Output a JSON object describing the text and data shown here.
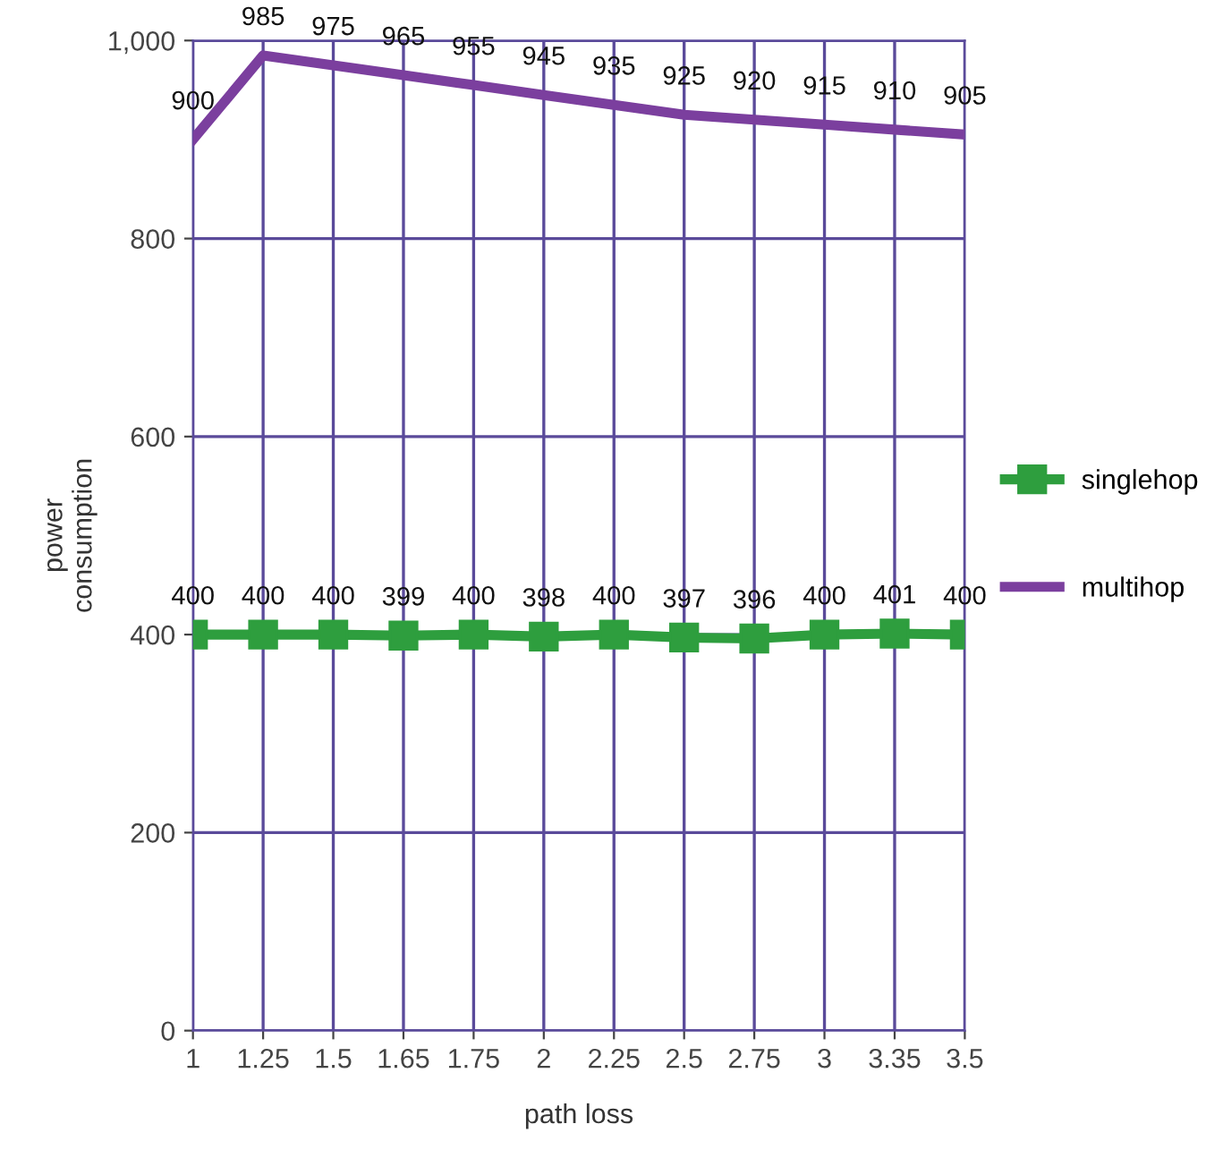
{
  "chart_data": {
    "type": "line",
    "xlabel": "path loss",
    "ylabel": "power\nconsumption",
    "categories": [
      "1",
      "1.25",
      "1.5",
      "1.65",
      "1.75",
      "2",
      "2.25",
      "2.5",
      "2.75",
      "3",
      "3.35",
      "3.5"
    ],
    "series": [
      {
        "name": "singlehop",
        "color": "#2e9e3e",
        "marker": "square",
        "values": [
          400,
          400,
          400,
          399,
          400,
          398,
          400,
          397,
          396,
          400,
          401,
          400
        ]
      },
      {
        "name": "multihop",
        "color": "#7b3f9e",
        "marker": "none",
        "values": [
          900,
          985,
          975,
          965,
          955,
          945,
          935,
          925,
          920,
          915,
          910,
          905
        ]
      }
    ],
    "ylim": [
      0,
      1000
    ],
    "yticks": [
      0,
      200,
      400,
      600,
      {
        "value": 800,
        "label": "800"
      },
      {
        "value": 1000,
        "label": "1,000"
      }
    ],
    "grid": true,
    "legend": "right",
    "data_labels": true
  }
}
